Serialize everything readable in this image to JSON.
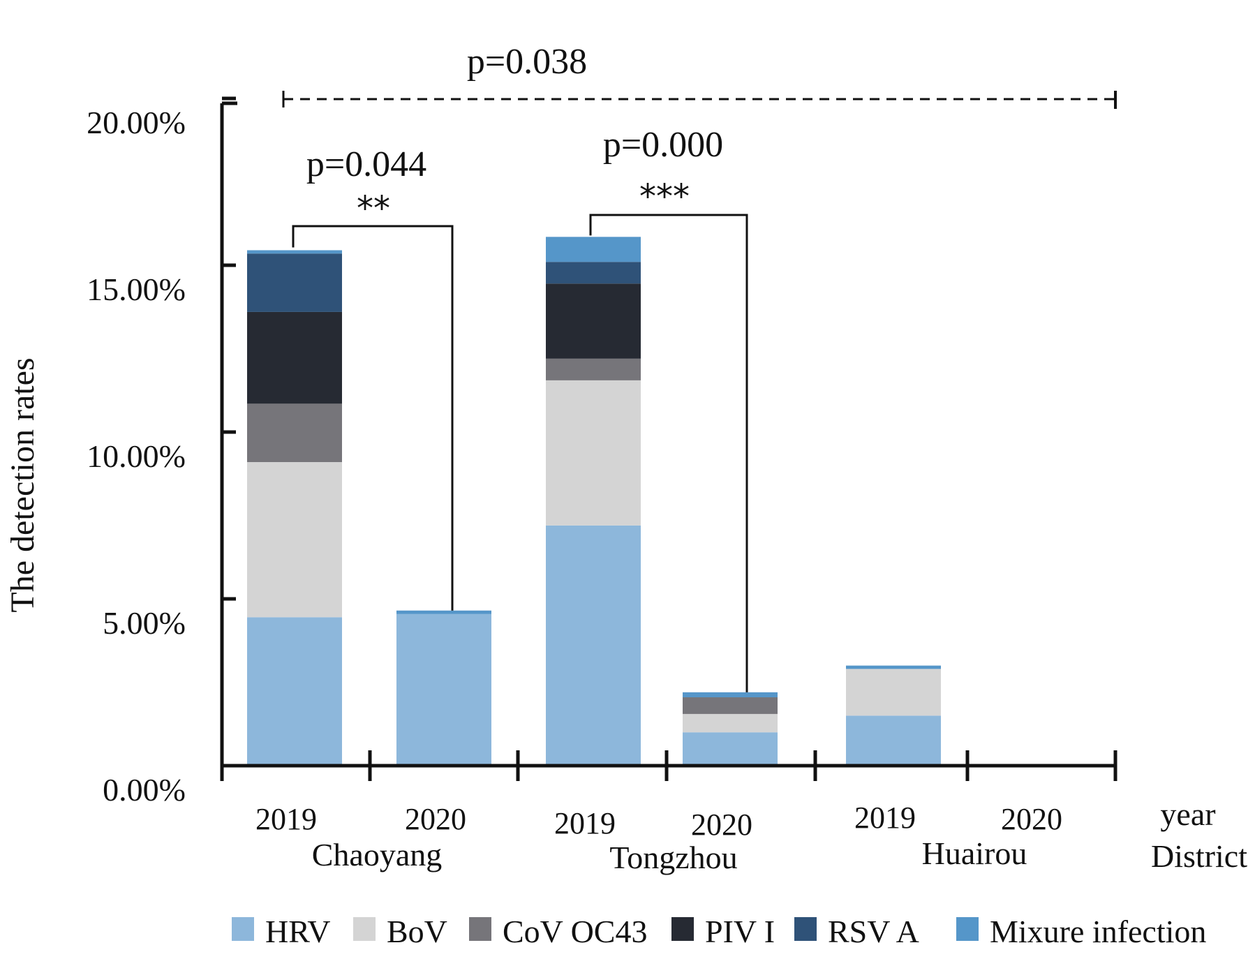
{
  "chart_data": {
    "type": "bar",
    "stacked": true,
    "ylabel": "The detection rates",
    "ylim": [
      0,
      20
    ],
    "y_ticks": [
      "0.00%",
      "5.00%",
      "10.00%",
      "15.00%",
      "20.00%"
    ],
    "year_axis_name": "year",
    "district_axis_name": "District",
    "categories": [
      {
        "year": "2019",
        "district": "Chaoyang"
      },
      {
        "year": "2020",
        "district": "Chaoyang"
      },
      {
        "year": "2019",
        "district": "Tongzhou"
      },
      {
        "year": "2020",
        "district": "Tongzhou"
      },
      {
        "year": "2019",
        "district": "Huairou"
      },
      {
        "year": "2020",
        "district": "Huairou"
      }
    ],
    "districts": [
      "Chaoyang",
      "Tongzhou",
      "Huairou"
    ],
    "series": [
      {
        "name": "HRV",
        "color": "#8db7db",
        "values": [
          4.45,
          4.55,
          7.2,
          1.0,
          1.5,
          0
        ]
      },
      {
        "name": "BoV",
        "color": "#d4d4d4",
        "values": [
          4.65,
          0,
          4.35,
          0.55,
          1.4,
          0
        ]
      },
      {
        "name": "CoV OC43",
        "color": "#76757a",
        "values": [
          1.75,
          0,
          0.65,
          0.5,
          0,
          0
        ]
      },
      {
        "name": "PIV I",
        "color": "#262a33",
        "values": [
          2.75,
          0,
          2.25,
          0,
          0,
          0
        ]
      },
      {
        "name": "RSV A",
        "color": "#2f5278",
        "values": [
          1.75,
          0,
          0.65,
          0,
          0,
          0
        ]
      },
      {
        "name": "Mixure infection",
        "color": "#5596c9",
        "values": [
          0.1,
          0.1,
          0.75,
          0.15,
          0.1,
          0
        ]
      }
    ],
    "annotations": [
      {
        "label": "p=0.044",
        "stars": "**",
        "from": 0,
        "to": 1
      },
      {
        "label": "p=0.000",
        "stars": "***",
        "from": 2,
        "to": 3
      },
      {
        "label": "p=0.038",
        "stars": "",
        "from": 0,
        "to": 5
      }
    ]
  }
}
